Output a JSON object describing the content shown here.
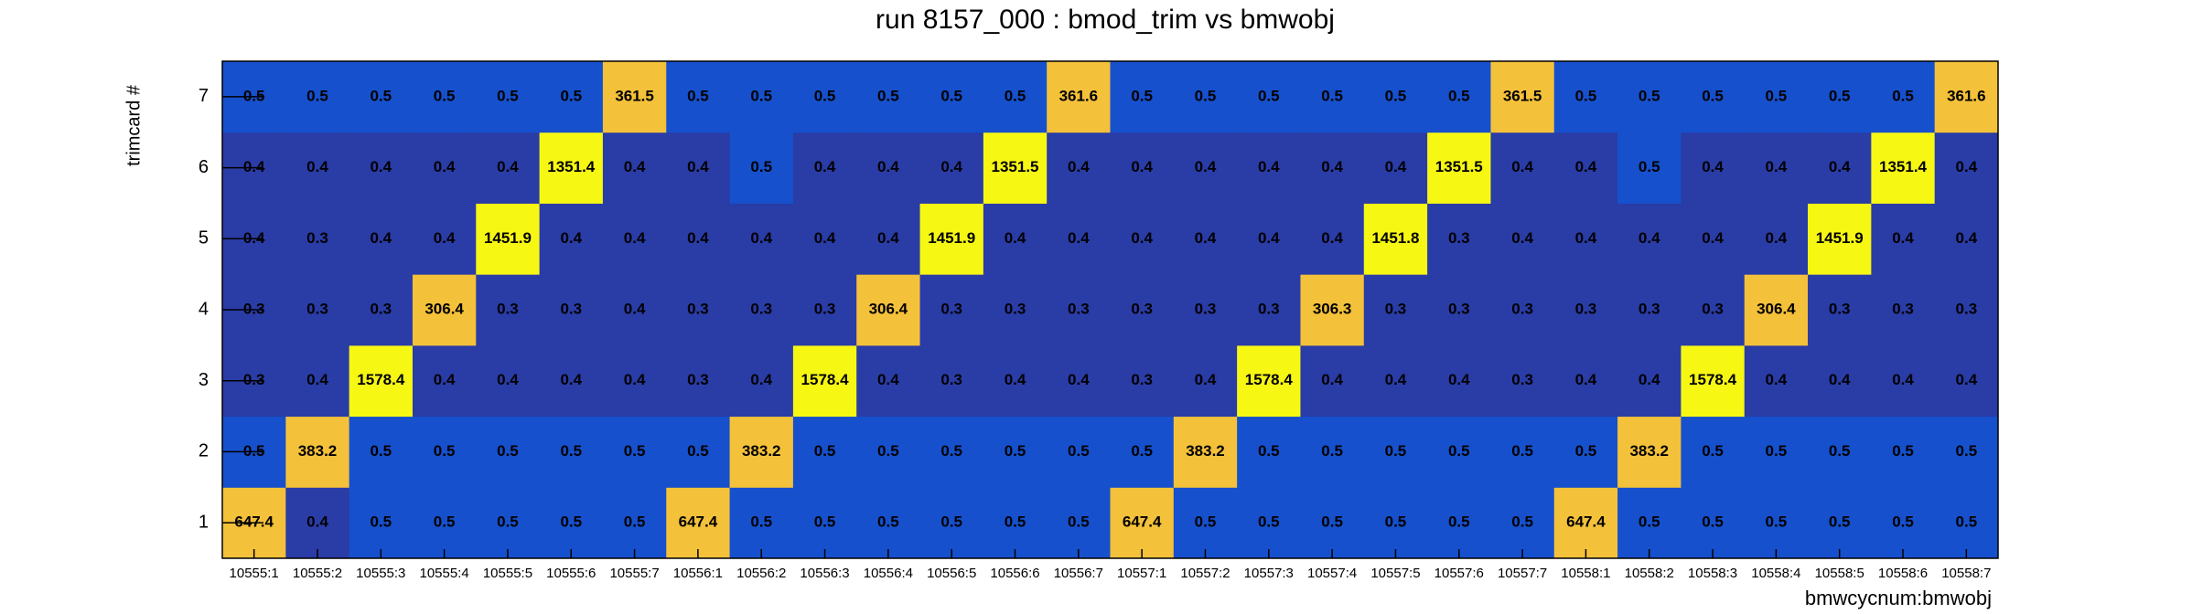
{
  "chart_data": {
    "type": "heatmap",
    "title": "run 8157_000 : bmod_trim vs bmwobj",
    "x_label": "bmwcycnum:bmwobj",
    "y_label": "trimcard #",
    "categories": [
      "10555:1",
      "10555:2",
      "10555:3",
      "10555:4",
      "10555:5",
      "10555:6",
      "10555:7",
      "10556:1",
      "10556:2",
      "10556:3",
      "10556:4",
      "10556:5",
      "10556:6",
      "10556:7",
      "10557:1",
      "10557:2",
      "10557:3",
      "10557:4",
      "10557:5",
      "10557:6",
      "10557:7",
      "10558:1",
      "10558:2",
      "10558:3",
      "10558:4",
      "10558:5",
      "10558:6",
      "10558:7"
    ],
    "y": [
      1,
      2,
      3,
      4,
      5,
      6,
      7
    ],
    "ylim": [
      0.5,
      7.5
    ],
    "yticks": [
      1,
      2,
      3,
      4,
      5,
      6,
      7
    ],
    "z": [
      [
        647.4,
        0.4,
        0.5,
        0.5,
        0.5,
        0.5,
        0.5,
        647.4,
        0.5,
        0.5,
        0.5,
        0.5,
        0.5,
        0.5,
        647.4,
        0.5,
        0.5,
        0.5,
        0.5,
        0.5,
        0.5,
        647.4,
        0.5,
        0.5,
        0.5,
        0.5,
        0.5,
        0.5
      ],
      [
        0.5,
        383.2,
        0.5,
        0.5,
        0.5,
        0.5,
        0.5,
        0.5,
        383.2,
        0.5,
        0.5,
        0.5,
        0.5,
        0.5,
        0.5,
        383.2,
        0.5,
        0.5,
        0.5,
        0.5,
        0.5,
        0.5,
        383.2,
        0.5,
        0.5,
        0.5,
        0.5,
        0.5
      ],
      [
        0.3,
        0.4,
        1578.4,
        0.4,
        0.4,
        0.4,
        0.4,
        0.3,
        0.4,
        1578.4,
        0.4,
        0.3,
        0.4,
        0.4,
        0.3,
        0.4,
        1578.4,
        0.4,
        0.4,
        0.4,
        0.3,
        0.4,
        0.4,
        1578.4,
        0.4,
        0.4,
        0.4,
        0.4
      ],
      [
        0.3,
        0.3,
        0.3,
        306.4,
        0.3,
        0.3,
        0.4,
        0.3,
        0.3,
        0.3,
        306.4,
        0.3,
        0.3,
        0.3,
        0.3,
        0.3,
        0.3,
        306.3,
        0.3,
        0.3,
        0.3,
        0.3,
        0.3,
        0.3,
        306.4,
        0.3,
        0.3,
        0.3
      ],
      [
        0.4,
        0.3,
        0.4,
        0.4,
        1451.9,
        0.4,
        0.4,
        0.4,
        0.4,
        0.4,
        0.4,
        1451.9,
        0.4,
        0.4,
        0.4,
        0.4,
        0.4,
        0.4,
        1451.8,
        0.3,
        0.4,
        0.4,
        0.4,
        0.4,
        0.4,
        1451.9,
        0.4,
        0.4
      ],
      [
        0.4,
        0.4,
        0.4,
        0.4,
        0.4,
        1351.4,
        0.4,
        0.4,
        0.5,
        0.4,
        0.4,
        0.4,
        1351.5,
        0.4,
        0.4,
        0.4,
        0.4,
        0.4,
        0.4,
        1351.5,
        0.4,
        0.4,
        0.5,
        0.4,
        0.4,
        0.4,
        1351.4,
        0.4
      ],
      [
        0.5,
        0.5,
        0.5,
        0.5,
        0.5,
        0.5,
        361.5,
        0.5,
        0.5,
        0.5,
        0.5,
        0.5,
        0.5,
        361.6,
        0.5,
        0.5,
        0.5,
        0.5,
        0.5,
        0.5,
        361.5,
        0.5,
        0.5,
        0.5,
        0.5,
        0.5,
        0.5,
        361.6
      ]
    ]
  }
}
